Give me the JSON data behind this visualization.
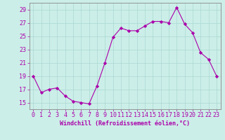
{
  "x": [
    0,
    1,
    2,
    3,
    4,
    5,
    6,
    7,
    8,
    9,
    10,
    11,
    12,
    13,
    14,
    15,
    16,
    17,
    18,
    19,
    20,
    21,
    22,
    23
  ],
  "y": [
    19,
    16.5,
    17,
    17.2,
    16.0,
    15.2,
    15.0,
    14.8,
    17.5,
    21,
    24.8,
    26.2,
    25.8,
    25.8,
    26.5,
    27.2,
    27.2,
    27.0,
    29.3,
    26.8,
    25.5,
    22.5,
    21.5,
    19.0
  ],
  "line_color": "#aa00aa",
  "marker": "D",
  "marker_size": 2.2,
  "bg_color": "#cceee8",
  "grid_color": "#aad8d2",
  "xlabel": "Windchill (Refroidissement éolien,°C)",
  "xlabel_fontsize": 6.0,
  "tick_fontsize": 6.0,
  "ylim": [
    14,
    30
  ],
  "yticks": [
    15,
    17,
    19,
    21,
    23,
    25,
    27,
    29
  ],
  "xticks": [
    0,
    1,
    2,
    3,
    4,
    5,
    6,
    7,
    8,
    9,
    10,
    11,
    12,
    13,
    14,
    15,
    16,
    17,
    18,
    19,
    20,
    21,
    22,
    23
  ]
}
